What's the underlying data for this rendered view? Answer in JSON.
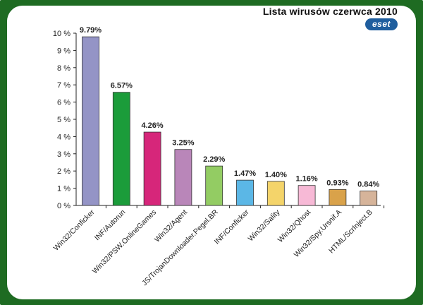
{
  "chart_data": {
    "type": "bar",
    "title": "Lista wirusów czerwca 2010",
    "brand": "eset",
    "categories": [
      "Win32/Conficker",
      "INF/Autorun",
      "Win32/PSW.OnlineGames",
      "Win32/Agent",
      "JS/TrojanDownloader.Pegel.BR",
      "INF/Conficker",
      "Win32/Sality",
      "Win32/Qhost",
      "Win32/Spy.Ursnif.A",
      "HTML/ScrInject.B"
    ],
    "values": [
      9.79,
      6.57,
      4.26,
      3.25,
      2.29,
      1.47,
      1.4,
      1.16,
      0.93,
      0.84
    ],
    "value_labels": [
      "9.79%",
      "6.57%",
      "4.26%",
      "3.25%",
      "2.29%",
      "1.47%",
      "1.40%",
      "1.16%",
      "0.93%",
      "0.84%"
    ],
    "colors": [
      "#9494c6",
      "#1b9c3a",
      "#d6267a",
      "#b986b9",
      "#93cc63",
      "#5bb7e6",
      "#f4d46a",
      "#f7b9d6",
      "#d9a24a",
      "#d6b49a"
    ],
    "ylim": [
      0,
      10
    ],
    "yticks": [
      "0 %",
      "1 %",
      "2 %",
      "3 %",
      "4 %",
      "5 %",
      "6 %",
      "7 %",
      "8 %",
      "9 %",
      "10 %"
    ],
    "xlabel": "",
    "ylabel": "",
    "grid": false,
    "legend": "none"
  }
}
